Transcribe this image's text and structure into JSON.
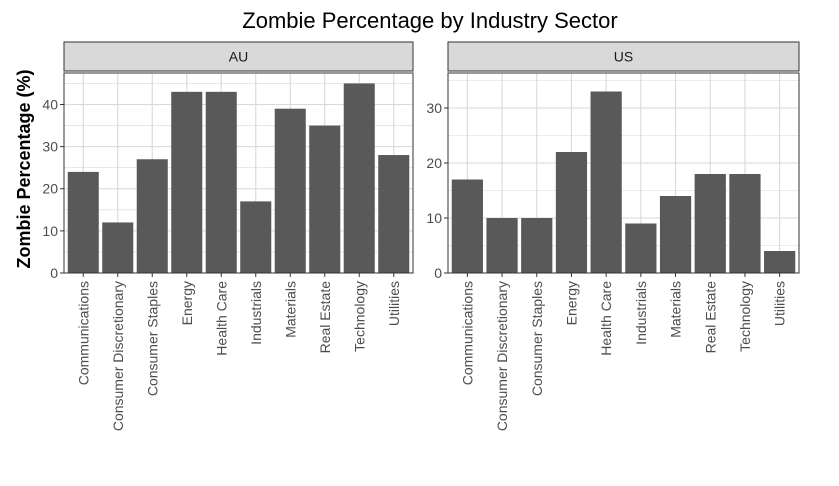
{
  "chart_data": {
    "type": "bar",
    "title": "Zombie Percentage by Industry Sector",
    "ylabel": "Zombie Percentage (%)",
    "xlabel": "",
    "colors": {
      "bar": "#595959",
      "panel_bg": "#ffffff",
      "grid": "#d9d9d9",
      "strip_bg": "#d9d9d9",
      "strip_border": "#333333",
      "panel_border": "#333333"
    },
    "categories": [
      "Communications",
      "Consumer Discretionary",
      "Consumer Staples",
      "Energy",
      "Health Care",
      "Industrials",
      "Materials",
      "Real Estate",
      "Technology",
      "Utilities"
    ],
    "facets": [
      {
        "name": "AU",
        "values": [
          24,
          12,
          27,
          43,
          43,
          17,
          39,
          35,
          45,
          28
        ],
        "ylim": [
          0,
          47
        ],
        "yticks": [
          0,
          10,
          20,
          30,
          40
        ]
      },
      {
        "name": "US",
        "values": [
          17,
          10,
          10,
          22,
          33,
          9,
          14,
          18,
          18,
          4
        ],
        "ylim": [
          0,
          36
        ],
        "yticks": [
          0,
          10,
          20,
          30
        ]
      }
    ]
  }
}
